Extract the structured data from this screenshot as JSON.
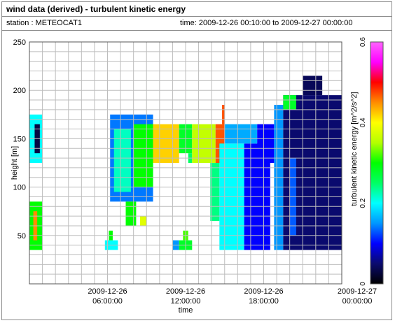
{
  "header": {
    "title": "wind data (derived) - turbulent kinetic energy",
    "station": "station : METEOCAT1",
    "time_range": "time: 2009-12-26 00:10:00 to 2009-12-27 00:00:00"
  },
  "chart_data": {
    "type": "heatmap",
    "xlabel": "time",
    "ylabel": "height [m]",
    "colorbar_label": "turbulent kinetic energy [m^2/s^2]",
    "xlim": [
      0,
      24
    ],
    "ylim": [
      0,
      250
    ],
    "clim": [
      0,
      0.6
    ],
    "x_ticks": [
      {
        "value": 6,
        "line1": "2009-12-26",
        "line2": "06:00:00"
      },
      {
        "value": 12,
        "line1": "2009-12-26",
        "line2": "12:00:00"
      },
      {
        "value": 18,
        "line1": "2009-12-26",
        "line2": "18:00:00"
      },
      {
        "value": 24,
        "line1": "2009-12-27",
        "line2": "00:00:00"
      }
    ],
    "y_ticks": [
      50,
      100,
      150,
      200,
      250
    ],
    "color_ticks": [
      "0",
      "0.2",
      "0.4",
      "0.6"
    ],
    "grid": true,
    "colormap": [
      "#000000",
      "#0a0a6e",
      "#0000ff",
      "#0096ff",
      "#00ffff",
      "#00ff64",
      "#00ff00",
      "#b4ff00",
      "#ffff00",
      "#ff8c00",
      "#ff0000",
      "#ff00ff",
      "#ff64ff"
    ],
    "blocks": [
      {
        "t0": 0.0,
        "t1": 1.0,
        "h0": 125,
        "h1": 175,
        "v": 0.2
      },
      {
        "t0": 0.4,
        "t1": 0.8,
        "h0": 135,
        "h1": 165,
        "v": 0.03
      },
      {
        "t0": 0.0,
        "t1": 1.0,
        "h0": 35,
        "h1": 85,
        "v": 0.3
      },
      {
        "t0": 0.3,
        "t1": 0.6,
        "h0": 45,
        "h1": 75,
        "v": 0.45
      },
      {
        "t0": 5.8,
        "t1": 6.8,
        "h0": 35,
        "h1": 45,
        "v": 0.2
      },
      {
        "t0": 6.1,
        "t1": 6.4,
        "h0": 45,
        "h1": 55,
        "v": 0.3
      },
      {
        "t0": 6.2,
        "t1": 9.5,
        "h0": 85,
        "h1": 175,
        "v": 0.14
      },
      {
        "t0": 6.5,
        "t1": 7.8,
        "h0": 95,
        "h1": 160,
        "v": 0.22
      },
      {
        "t0": 7.4,
        "t1": 8.2,
        "h0": 60,
        "h1": 85,
        "v": 0.3
      },
      {
        "t0": 8.0,
        "t1": 9.5,
        "h0": 100,
        "h1": 165,
        "v": 0.3
      },
      {
        "t0": 8.5,
        "t1": 9.0,
        "h0": 60,
        "h1": 70,
        "v": 0.38
      },
      {
        "t0": 9.5,
        "t1": 11.5,
        "h0": 125,
        "h1": 165,
        "v": 0.42
      },
      {
        "t0": 11.5,
        "t1": 12.5,
        "h0": 135,
        "h1": 165,
        "v": 0.28
      },
      {
        "t0": 12.2,
        "t1": 12.5,
        "h0": 125,
        "h1": 135,
        "v": 0.25
      },
      {
        "t0": 11.0,
        "t1": 11.5,
        "h0": 35,
        "h1": 45,
        "v": 0.15
      },
      {
        "t0": 11.5,
        "t1": 12.5,
        "h0": 35,
        "h1": 45,
        "v": 0.28
      },
      {
        "t0": 11.8,
        "t1": 12.2,
        "h0": 45,
        "h1": 55,
        "v": 0.32
      },
      {
        "t0": 12.5,
        "t1": 14.3,
        "h0": 125,
        "h1": 165,
        "v": 0.36
      },
      {
        "t0": 14.3,
        "t1": 15.0,
        "h0": 125,
        "h1": 165,
        "v": 0.47
      },
      {
        "t0": 14.8,
        "t1": 15.0,
        "h0": 165,
        "h1": 185,
        "v": 0.47
      },
      {
        "t0": 13.9,
        "t1": 14.6,
        "h0": 65,
        "h1": 125,
        "v": 0.24
      },
      {
        "t0": 14.6,
        "t1": 16.5,
        "h0": 35,
        "h1": 145,
        "v": 0.2
      },
      {
        "t0": 16.5,
        "t1": 18.5,
        "h0": 35,
        "h1": 145,
        "v": 0.1
      },
      {
        "t0": 15.0,
        "t1": 17.5,
        "h0": 145,
        "h1": 165,
        "v": 0.16
      },
      {
        "t0": 17.5,
        "t1": 18.8,
        "h0": 125,
        "h1": 165,
        "v": 0.1
      },
      {
        "t0": 18.8,
        "t1": 19.5,
        "h0": 35,
        "h1": 185,
        "v": 0.15
      },
      {
        "t0": 19.5,
        "t1": 24.0,
        "h0": 35,
        "h1": 195,
        "v": 0.05
      },
      {
        "t0": 21.0,
        "t1": 22.5,
        "h0": 195,
        "h1": 215,
        "v": 0.04
      },
      {
        "t0": 19.5,
        "t1": 20.5,
        "h0": 180,
        "h1": 195,
        "v": 0.28
      },
      {
        "t0": 20.0,
        "t1": 20.5,
        "h0": 50,
        "h1": 130,
        "v": 0.13
      }
    ]
  }
}
